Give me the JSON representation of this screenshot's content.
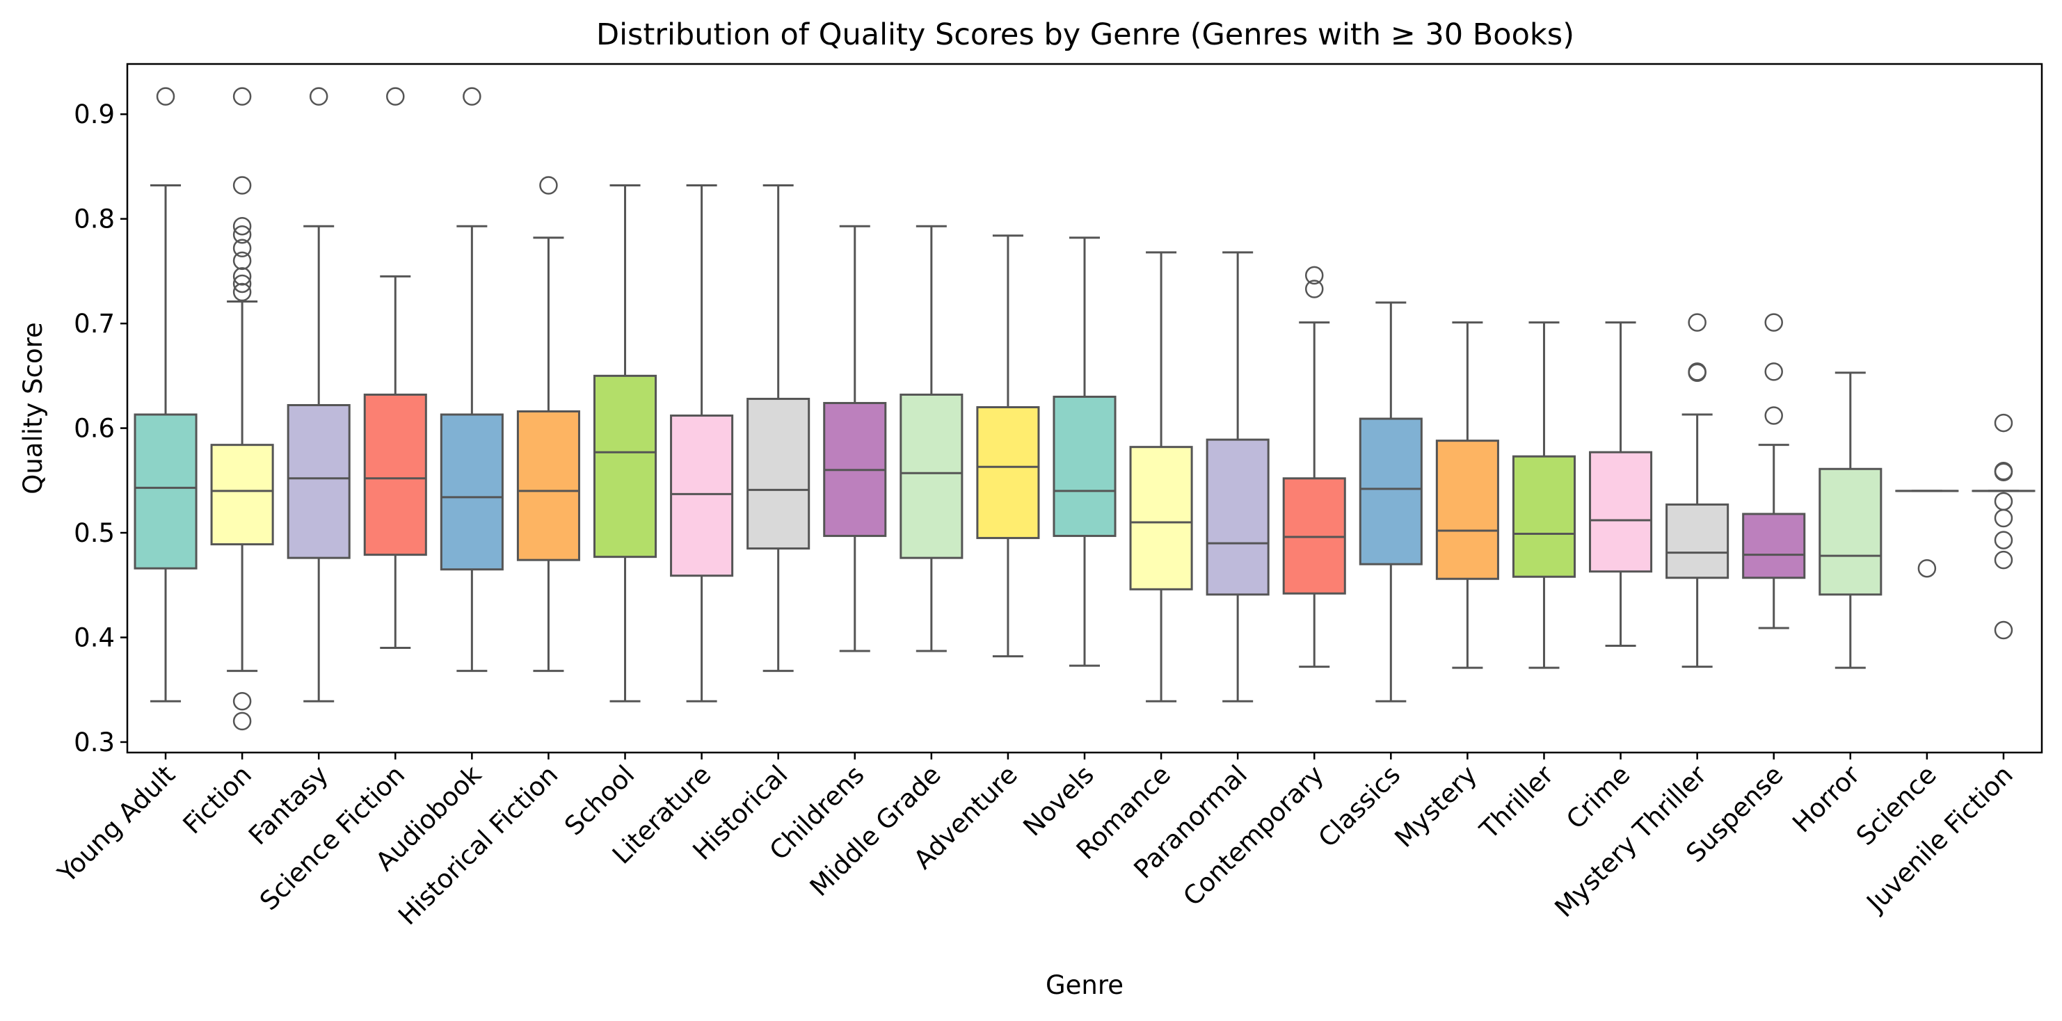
{
  "chart_data": {
    "type": "box",
    "title": "Distribution of Quality Scores by Genre (Genres with ≥ 30 Books)",
    "xlabel": "Genre",
    "ylabel": "Quality Score",
    "ylim": [
      0.29,
      0.948
    ],
    "yticks": [
      0.3,
      0.4,
      0.5,
      0.6,
      0.7,
      0.8,
      0.9
    ],
    "ytick_labels": [
      "0.3",
      "0.4",
      "0.5",
      "0.6",
      "0.7",
      "0.8",
      "0.9"
    ],
    "grid": false,
    "categories": [
      "Young Adult",
      "Fiction",
      "Fantasy",
      "Science Fiction",
      "Audiobook",
      "Historical Fiction",
      "School",
      "Literature",
      "Historical",
      "Childrens",
      "Middle Grade",
      "Adventure",
      "Novels",
      "Romance",
      "Paranormal",
      "Contemporary",
      "Classics",
      "Mystery",
      "Thriller",
      "Crime",
      "Mystery Thriller",
      "Suspense",
      "Horror",
      "Science",
      "Juvenile Fiction"
    ],
    "colors": [
      "#8dd3c7",
      "#ffffb3",
      "#bebada",
      "#fb8072",
      "#80b1d3",
      "#fdb462",
      "#b3de69",
      "#fccde5",
      "#d9d9d9",
      "#bc80bd",
      "#ccebc5",
      "#ffed6f",
      "#8dd3c7",
      "#ffffb3",
      "#bebada",
      "#fb8072",
      "#80b1d3",
      "#fdb462",
      "#b3de69",
      "#fccde5",
      "#d9d9d9",
      "#bc80bd",
      "#ccebc5",
      "#ffffb3",
      "#bebada"
    ],
    "boxes": [
      {
        "whislo": 0.339,
        "q1": 0.466,
        "med": 0.543,
        "q3": 0.613,
        "whishi": 0.832,
        "fliers": [
          0.917
        ]
      },
      {
        "whislo": 0.368,
        "q1": 0.489,
        "med": 0.54,
        "q3": 0.584,
        "whishi": 0.721,
        "fliers": [
          0.917,
          0.832,
          0.793,
          0.785,
          0.772,
          0.76,
          0.745,
          0.738,
          0.73,
          0.339,
          0.32
        ]
      },
      {
        "whislo": 0.339,
        "q1": 0.476,
        "med": 0.552,
        "q3": 0.622,
        "whishi": 0.793,
        "fliers": [
          0.917
        ]
      },
      {
        "whislo": 0.39,
        "q1": 0.479,
        "med": 0.552,
        "q3": 0.632,
        "whishi": 0.745,
        "fliers": [
          0.917
        ]
      },
      {
        "whislo": 0.368,
        "q1": 0.465,
        "med": 0.534,
        "q3": 0.613,
        "whishi": 0.793,
        "fliers": [
          0.917
        ]
      },
      {
        "whislo": 0.368,
        "q1": 0.474,
        "med": 0.54,
        "q3": 0.616,
        "whishi": 0.782,
        "fliers": [
          0.832
        ]
      },
      {
        "whislo": 0.339,
        "q1": 0.477,
        "med": 0.577,
        "q3": 0.65,
        "whishi": 0.832,
        "fliers": []
      },
      {
        "whislo": 0.339,
        "q1": 0.459,
        "med": 0.537,
        "q3": 0.612,
        "whishi": 0.832,
        "fliers": []
      },
      {
        "whislo": 0.368,
        "q1": 0.485,
        "med": 0.541,
        "q3": 0.628,
        "whishi": 0.832,
        "fliers": []
      },
      {
        "whislo": 0.387,
        "q1": 0.497,
        "med": 0.56,
        "q3": 0.624,
        "whishi": 0.793,
        "fliers": []
      },
      {
        "whislo": 0.387,
        "q1": 0.476,
        "med": 0.557,
        "q3": 0.632,
        "whishi": 0.793,
        "fliers": []
      },
      {
        "whislo": 0.382,
        "q1": 0.495,
        "med": 0.563,
        "q3": 0.62,
        "whishi": 0.784,
        "fliers": []
      },
      {
        "whislo": 0.373,
        "q1": 0.497,
        "med": 0.54,
        "q3": 0.63,
        "whishi": 0.782,
        "fliers": []
      },
      {
        "whislo": 0.339,
        "q1": 0.446,
        "med": 0.51,
        "q3": 0.582,
        "whishi": 0.768,
        "fliers": []
      },
      {
        "whislo": 0.339,
        "q1": 0.441,
        "med": 0.49,
        "q3": 0.589,
        "whishi": 0.768,
        "fliers": []
      },
      {
        "whislo": 0.372,
        "q1": 0.442,
        "med": 0.496,
        "q3": 0.552,
        "whishi": 0.701,
        "fliers": [
          0.746,
          0.733
        ]
      },
      {
        "whislo": 0.339,
        "q1": 0.47,
        "med": 0.542,
        "q3": 0.609,
        "whishi": 0.72,
        "fliers": []
      },
      {
        "whislo": 0.371,
        "q1": 0.456,
        "med": 0.502,
        "q3": 0.588,
        "whishi": 0.701,
        "fliers": []
      },
      {
        "whislo": 0.371,
        "q1": 0.458,
        "med": 0.499,
        "q3": 0.573,
        "whishi": 0.701,
        "fliers": []
      },
      {
        "whislo": 0.392,
        "q1": 0.463,
        "med": 0.512,
        "q3": 0.577,
        "whishi": 0.701,
        "fliers": []
      },
      {
        "whislo": 0.372,
        "q1": 0.457,
        "med": 0.481,
        "q3": 0.527,
        "whishi": 0.613,
        "fliers": [
          0.701,
          0.654,
          0.653
        ]
      },
      {
        "whislo": 0.409,
        "q1": 0.457,
        "med": 0.479,
        "q3": 0.518,
        "whishi": 0.584,
        "fliers": [
          0.701,
          0.654,
          0.612
        ]
      },
      {
        "whislo": 0.371,
        "q1": 0.441,
        "med": 0.478,
        "q3": 0.561,
        "whishi": 0.653,
        "fliers": []
      },
      {
        "whislo": 0.54,
        "q1": 0.54,
        "med": 0.54,
        "q3": 0.54,
        "whishi": 0.54,
        "fliers": [
          0.466
        ]
      },
      {
        "whislo": 0.54,
        "q1": 0.54,
        "med": 0.54,
        "q3": 0.54,
        "whishi": 0.54,
        "fliers": [
          0.605,
          0.559,
          0.558,
          0.53,
          0.514,
          0.493,
          0.474,
          0.407
        ]
      }
    ]
  }
}
